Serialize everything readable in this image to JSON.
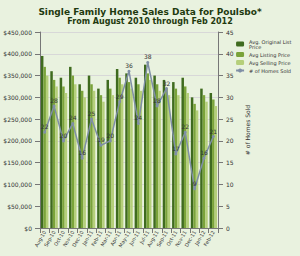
{
  "chart_data": {
    "type": "bar",
    "title": "Single Family Home Sales Data for Poulsbo*",
    "subtitle": "From August 2010 through Feb 2012",
    "y2_label": "# of Homes Sold",
    "categories": [
      "Aug-10",
      "Sep-10",
      "Oct-10",
      "Nov-10",
      "Dec-10",
      "Jan-11",
      "Feb-11",
      "Mar-11",
      "Apr-11",
      "May-11",
      "Jun-11",
      "Jul-11",
      "Aug-11",
      "Sep-11",
      "Oct-11",
      "Nov-11",
      "Dec-11",
      "Jan-12",
      "Feb-12"
    ],
    "series": [
      {
        "name": "Avg. Original List Price",
        "color": "#3f6b1f",
        "values": [
          395000,
          360000,
          345000,
          370000,
          330000,
          350000,
          320000,
          340000,
          365000,
          355000,
          345000,
          375000,
          350000,
          340000,
          335000,
          345000,
          300000,
          320000,
          310000
        ]
      },
      {
        "name": "Avg Listing Price",
        "color": "#7aa33a",
        "values": [
          370000,
          340000,
          325000,
          350000,
          315000,
          330000,
          305000,
          320000,
          345000,
          335000,
          330000,
          355000,
          330000,
          320000,
          320000,
          325000,
          285000,
          305000,
          295000
        ]
      },
      {
        "name": "Avg Selling Price",
        "color": "#b5cf7a",
        "values": [
          350000,
          325000,
          310000,
          330000,
          300000,
          315000,
          290000,
          305000,
          330000,
          320000,
          315000,
          340000,
          315000,
          305000,
          305000,
          310000,
          270000,
          290000,
          280000
        ]
      },
      {
        "name": "# of Homes Sold",
        "type": "line",
        "axis": "y2",
        "color": "#7f8fa6",
        "marker": "circle",
        "data_labels": true,
        "values": [
          22,
          28,
          20,
          24,
          16,
          25,
          19,
          20,
          29,
          36,
          24,
          38,
          28,
          32,
          17,
          22,
          9,
          16,
          21
        ]
      }
    ],
    "ylim": [
      0,
      450000
    ],
    "yticks": [
      {
        "value": 0,
        "label": "$0"
      },
      {
        "value": 50000,
        "label": "$50,000"
      },
      {
        "value": 100000,
        "label": "$100,000"
      },
      {
        "value": 150000,
        "label": "$150,000"
      },
      {
        "value": 200000,
        "label": "$200,000"
      },
      {
        "value": 250000,
        "label": "$250,000"
      },
      {
        "value": 300000,
        "label": "$300,000"
      },
      {
        "value": 350000,
        "label": "$350,000"
      },
      {
        "value": 400000,
        "label": "$400,000"
      },
      {
        "value": 450000,
        "label": "$450,000"
      }
    ],
    "y2lim": [
      0,
      45
    ],
    "y2ticks": [
      0,
      5,
      10,
      15,
      20,
      25,
      30,
      35,
      40,
      45
    ],
    "grid": true,
    "legend": "right"
  }
}
